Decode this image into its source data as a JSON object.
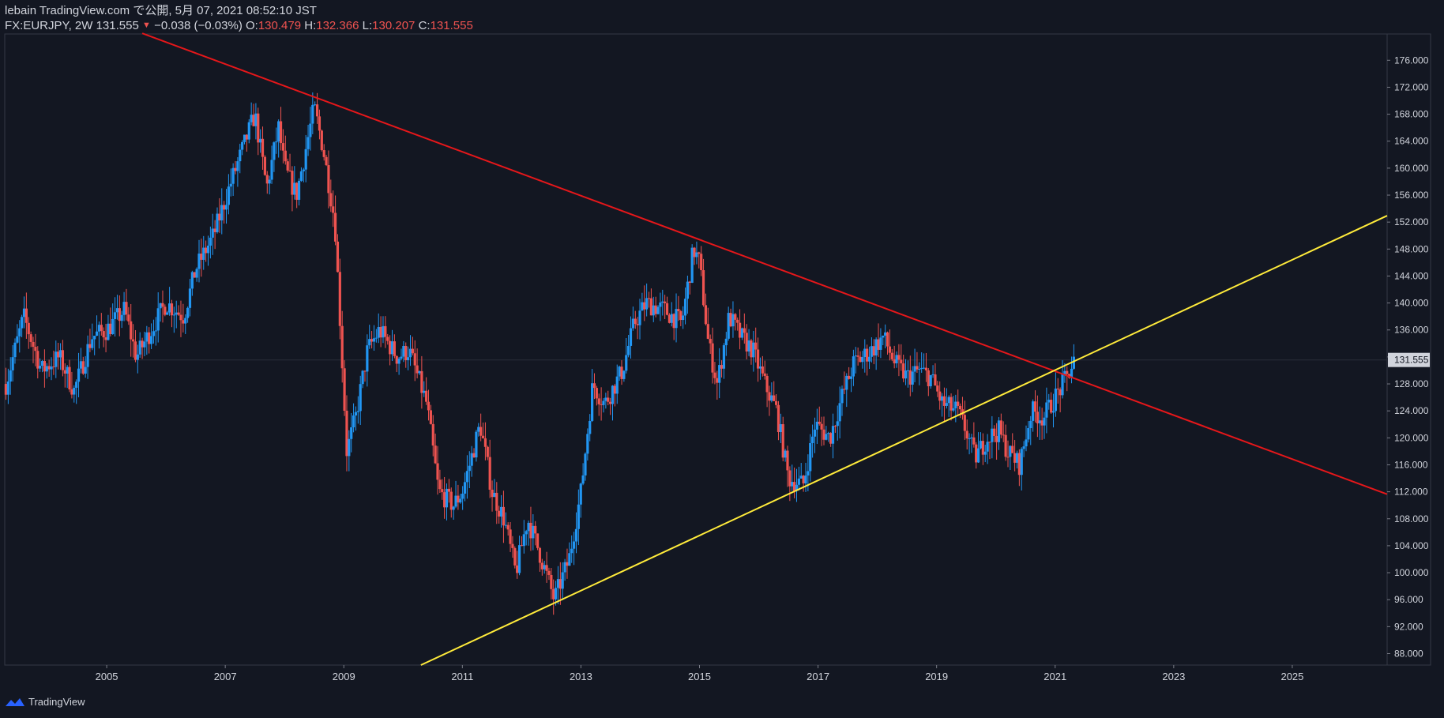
{
  "header": {
    "line1": "lebain TradingView.com で公開, 5月 07, 2021 08:52:10 JST",
    "symbol": "FX:EURJPY, 2W",
    "last": "131.555",
    "change_arrow": "▼",
    "change": "−0.038 (−0.03%)",
    "o_label": "O:",
    "o_value": "130.479",
    "h_label": "H:",
    "h_value": "132.366",
    "l_label": "L:",
    "l_value": "130.207",
    "c_label": "C:",
    "c_value": "131.555"
  },
  "footer": {
    "brand": "TradingView",
    "logo_icon": "tradingview-logo-icon"
  },
  "colors": {
    "background": "#131722",
    "up": "#2196f3",
    "down": "#ef5350",
    "resistance": "#e5171a",
    "support": "#ffeb3b",
    "axis_text": "#d1d4dc",
    "last_label_bg": "#d1d4dc"
  },
  "chart_data": {
    "type": "candlestick",
    "title": "FX:EURJPY, 2W",
    "x_ticks": [
      "2005",
      "2007",
      "2009",
      "2011",
      "2013",
      "2015",
      "2017",
      "2019",
      "2021",
      "2023",
      "2025"
    ],
    "x_range": [
      2003.28,
      2026.6
    ],
    "y_ticks": [
      "176.000",
      "172.000",
      "168.000",
      "164.000",
      "160.000",
      "156.000",
      "152.000",
      "148.000",
      "144.000",
      "140.000",
      "136.000",
      "132.000",
      "128.000",
      "124.000",
      "120.000",
      "116.000",
      "112.000",
      "108.000",
      "104.000",
      "100.000",
      "96.000",
      "92.000",
      "88.000"
    ],
    "y_range": [
      86.3,
      179.9
    ],
    "last_price": "131.555",
    "price_path": [
      [
        2003.3,
        128.0
      ],
      [
        2003.6,
        138.0
      ],
      [
        2003.9,
        130.0
      ],
      [
        2004.2,
        132.0
      ],
      [
        2004.45,
        127.0
      ],
      [
        2004.75,
        135.0
      ],
      [
        2005.0,
        136.0
      ],
      [
        2005.3,
        139.0
      ],
      [
        2005.5,
        132.0
      ],
      [
        2005.75,
        136.0
      ],
      [
        2006.0,
        140.0
      ],
      [
        2006.3,
        138.0
      ],
      [
        2006.5,
        145.0
      ],
      [
        2006.8,
        150.0
      ],
      [
        2007.1,
        158.0
      ],
      [
        2007.5,
        168.0
      ],
      [
        2007.7,
        157.0
      ],
      [
        2007.9,
        166.0
      ],
      [
        2008.0,
        160.0
      ],
      [
        2008.2,
        156.0
      ],
      [
        2008.5,
        169.0
      ],
      [
        2008.65,
        163.0
      ],
      [
        2008.85,
        152.0
      ],
      [
        2008.95,
        135.0
      ],
      [
        2009.05,
        118.0
      ],
      [
        2009.2,
        123.0
      ],
      [
        2009.4,
        133.0
      ],
      [
        2009.6,
        136.0
      ],
      [
        2009.9,
        132.0
      ],
      [
        2010.1,
        133.0
      ],
      [
        2010.4,
        125.0
      ],
      [
        2010.6,
        112.0
      ],
      [
        2010.85,
        110.0
      ],
      [
        2011.0,
        112.0
      ],
      [
        2011.3,
        122.0
      ],
      [
        2011.5,
        112.0
      ],
      [
        2011.7,
        108.0
      ],
      [
        2011.9,
        100.0
      ],
      [
        2012.1,
        108.0
      ],
      [
        2012.3,
        103.0
      ],
      [
        2012.55,
        96.0
      ],
      [
        2012.8,
        102.0
      ],
      [
        2013.0,
        112.0
      ],
      [
        2013.2,
        128.0
      ],
      [
        2013.4,
        125.0
      ],
      [
        2013.7,
        130.0
      ],
      [
        2013.9,
        137.0
      ],
      [
        2014.1,
        140.0
      ],
      [
        2014.4,
        139.0
      ],
      [
        2014.7,
        137.0
      ],
      [
        2014.9,
        148.0
      ],
      [
        2015.0,
        146.0
      ],
      [
        2015.15,
        134.0
      ],
      [
        2015.3,
        128.0
      ],
      [
        2015.5,
        138.0
      ],
      [
        2015.7,
        135.0
      ],
      [
        2015.9,
        133.0
      ],
      [
        2016.1,
        128.0
      ],
      [
        2016.3,
        124.0
      ],
      [
        2016.5,
        114.0
      ],
      [
        2016.75,
        113.0
      ],
      [
        2016.95,
        122.0
      ],
      [
        2017.2,
        120.0
      ],
      [
        2017.4,
        126.0
      ],
      [
        2017.6,
        131.0
      ],
      [
        2017.9,
        133.0
      ],
      [
        2018.1,
        135.0
      ],
      [
        2018.3,
        131.0
      ],
      [
        2018.5,
        129.0
      ],
      [
        2018.7,
        130.0
      ],
      [
        2018.9,
        129.0
      ],
      [
        2019.1,
        125.0
      ],
      [
        2019.35,
        124.0
      ],
      [
        2019.5,
        121.0
      ],
      [
        2019.65,
        117.0
      ],
      [
        2019.85,
        120.0
      ],
      [
        2020.05,
        121.0
      ],
      [
        2020.2,
        118.0
      ],
      [
        2020.4,
        116.0
      ],
      [
        2020.6,
        124.0
      ],
      [
        2020.8,
        123.0
      ],
      [
        2021.0,
        126.0
      ],
      [
        2021.2,
        129.0
      ],
      [
        2021.32,
        131.5
      ]
    ],
    "trendlines": [
      {
        "name": "resistance",
        "from": [
          2005.6,
          180.0
        ],
        "through": [
          2014.97,
          149.5
        ],
        "extend_to": 2026.6
      },
      {
        "name": "support",
        "from": [
          2010.3,
          86.3
        ],
        "through": [
          2012.55,
          95.5
        ],
        "extend_to": 2026.6
      }
    ]
  }
}
